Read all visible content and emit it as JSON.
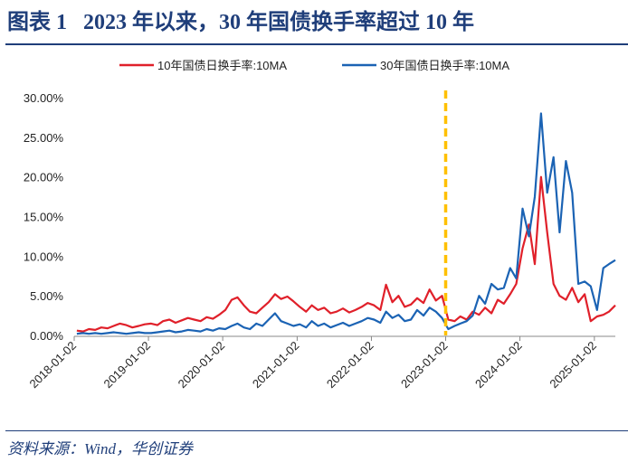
{
  "title": "图表 1   2023 年以来，30 年国债换手率超过 10 年",
  "source": "资料来源：Wind，华创证券",
  "chart_data": {
    "type": "line",
    "title": "",
    "ylim": [
      0,
      30
    ],
    "yticks": [
      "0.00%",
      "5.00%",
      "10.00%",
      "15.00%",
      "20.00%",
      "25.00%",
      "30.00%"
    ],
    "yticks_values": [
      0,
      5,
      10,
      15,
      20,
      25,
      30
    ],
    "xticks": [
      "2018-01-02",
      "2019-01-02",
      "2020-01-02",
      "2021-01-02",
      "2022-01-02",
      "2023-01-02",
      "2024-01-02",
      "2025-01-02"
    ],
    "xlim": [
      "2018-01-02",
      "2025-04-15"
    ],
    "grid": false,
    "legend": "top",
    "annotation": {
      "type": "vertical-dashed-line",
      "x": "2023-01-02",
      "color": "#ffc000"
    },
    "x": [
      "2018-01",
      "2018-02",
      "2018-03",
      "2018-04",
      "2018-05",
      "2018-06",
      "2018-07",
      "2018-08",
      "2018-09",
      "2018-10",
      "2018-11",
      "2018-12",
      "2019-01",
      "2019-02",
      "2019-03",
      "2019-04",
      "2019-05",
      "2019-06",
      "2019-07",
      "2019-08",
      "2019-09",
      "2019-10",
      "2019-11",
      "2019-12",
      "2020-01",
      "2020-02",
      "2020-03",
      "2020-04",
      "2020-05",
      "2020-06",
      "2020-07",
      "2020-08",
      "2020-09",
      "2020-10",
      "2020-11",
      "2020-12",
      "2021-01",
      "2021-02",
      "2021-03",
      "2021-04",
      "2021-05",
      "2021-06",
      "2021-07",
      "2021-08",
      "2021-09",
      "2021-10",
      "2021-11",
      "2021-12",
      "2022-01",
      "2022-02",
      "2022-03",
      "2022-04",
      "2022-05",
      "2022-06",
      "2022-07",
      "2022-08",
      "2022-09",
      "2022-10",
      "2022-11",
      "2022-12",
      "2023-01",
      "2023-02",
      "2023-03",
      "2023-04",
      "2023-05",
      "2023-06",
      "2023-07",
      "2023-08",
      "2023-09",
      "2023-10",
      "2023-11",
      "2023-12",
      "2024-01",
      "2024-02",
      "2024-03",
      "2024-04",
      "2024-05",
      "2024-06",
      "2024-07",
      "2024-08",
      "2024-09",
      "2024-10",
      "2024-11",
      "2024-12",
      "2025-01",
      "2025-02",
      "2025-03",
      "2025-04"
    ],
    "series": [
      {
        "name": "10年国债日换手率:10MA",
        "color": "#e0202a",
        "values": [
          0.6,
          0.5,
          0.8,
          0.7,
          1.0,
          0.9,
          1.2,
          1.5,
          1.3,
          1.0,
          1.2,
          1.4,
          1.5,
          1.3,
          1.8,
          2.0,
          1.6,
          1.9,
          2.2,
          2.0,
          1.8,
          2.3,
          2.1,
          2.6,
          3.2,
          4.5,
          4.8,
          3.8,
          3.0,
          2.8,
          3.5,
          4.2,
          5.2,
          4.6,
          4.9,
          4.3,
          3.6,
          3.0,
          3.8,
          3.2,
          3.5,
          2.8,
          3.0,
          3.4,
          2.9,
          3.2,
          3.6,
          4.1,
          3.8,
          3.2,
          6.4,
          4.2,
          5.0,
          3.6,
          3.9,
          4.7,
          4.1,
          5.8,
          4.4,
          5.0,
          2.0,
          1.8,
          2.4,
          2.0,
          3.0,
          2.6,
          3.5,
          2.8,
          4.5,
          4.0,
          5.2,
          6.5,
          11.0,
          14.0,
          9.0,
          20.0,
          13.0,
          6.5,
          5.0,
          4.5,
          6.0,
          4.2,
          5.2,
          1.8,
          2.4,
          2.6,
          3.0,
          3.8
        ]
      },
      {
        "name": "30年国债日换手率:10MA",
        "color": "#1b63b4",
        "values": [
          0.2,
          0.3,
          0.2,
          0.3,
          0.2,
          0.3,
          0.4,
          0.3,
          0.2,
          0.3,
          0.4,
          0.3,
          0.3,
          0.4,
          0.5,
          0.6,
          0.4,
          0.5,
          0.7,
          0.6,
          0.5,
          0.8,
          0.6,
          0.9,
          0.8,
          1.2,
          1.5,
          1.0,
          0.8,
          1.5,
          1.2,
          2.0,
          2.8,
          1.8,
          1.5,
          1.2,
          1.4,
          1.0,
          1.8,
          1.2,
          1.5,
          1.0,
          1.3,
          1.6,
          1.2,
          1.5,
          1.8,
          2.2,
          2.0,
          1.6,
          3.0,
          2.2,
          2.6,
          1.8,
          2.0,
          3.2,
          2.5,
          3.5,
          3.0,
          2.2,
          0.8,
          1.2,
          1.5,
          1.8,
          2.5,
          5.0,
          4.0,
          6.5,
          5.8,
          6.0,
          8.5,
          7.2,
          16.0,
          12.5,
          17.5,
          28.0,
          18.0,
          22.5,
          13.0,
          22.0,
          18.0,
          6.5,
          6.8,
          6.2,
          3.2,
          8.5,
          9.0,
          9.5
        ]
      }
    ]
  }
}
